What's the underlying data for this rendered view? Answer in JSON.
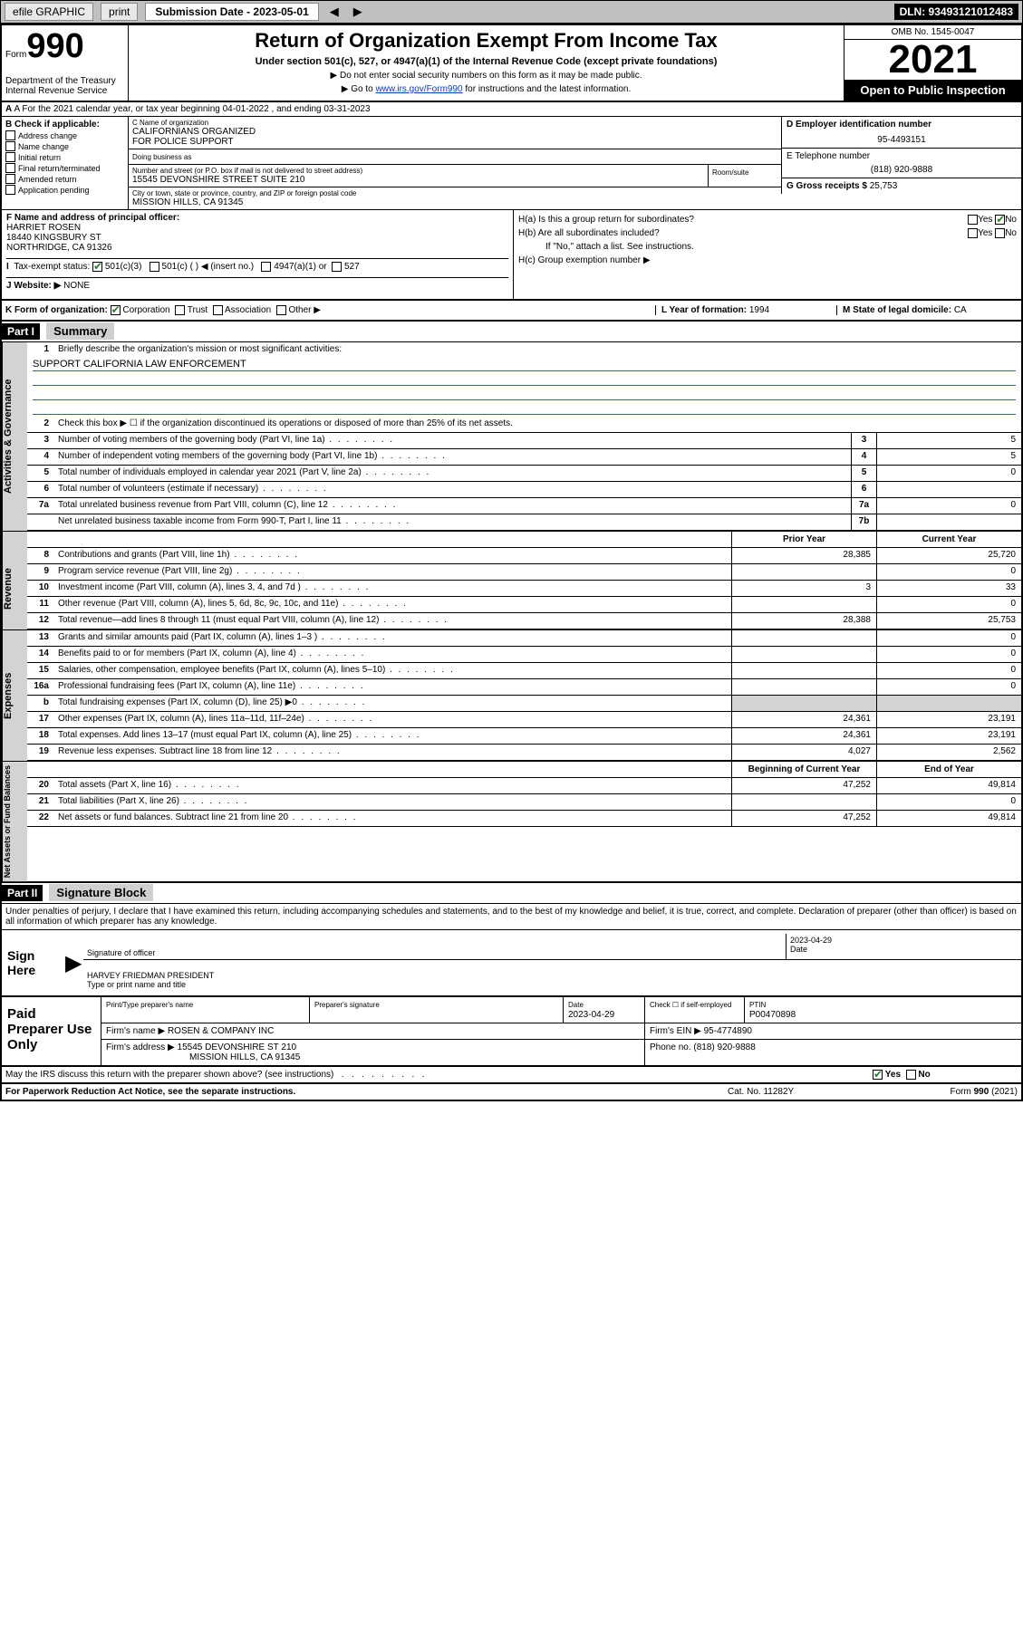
{
  "top_bar": {
    "efile_label": "efile GRAPHIC",
    "print_label": "print",
    "submission_label": "Submission Date - 2023-05-01",
    "dln_label": "DLN: 93493121012483"
  },
  "header": {
    "form_prefix": "Form",
    "form_number": "990",
    "dept": "Department of the Treasury\nInternal Revenue Service",
    "title": "Return of Organization Exempt From Income Tax",
    "subtitle": "Under section 501(c), 527, or 4947(a)(1) of the Internal Revenue Code (except private foundations)",
    "instr1": "▶ Do not enter social security numbers on this form as it may be made public.",
    "instr2_pre": "▶ Go to ",
    "instr2_link": "www.irs.gov/Form990",
    "instr2_post": " for instructions and the latest information.",
    "omb": "OMB No. 1545-0047",
    "year": "2021",
    "open": "Open to Public Inspection"
  },
  "section_a": "A For the 2021 calendar year, or tax year beginning 04-01-2022  , and ending 03-31-2023",
  "col_b": {
    "header": "B Check if applicable:",
    "items": [
      "Address change",
      "Name change",
      "Initial return",
      "Final return/terminated",
      "Amended return",
      "Application pending"
    ]
  },
  "entity": {
    "c_label": "C Name of organization",
    "name": "CALIFORNIANS ORGANIZED\nFOR POLICE SUPPORT",
    "dba_label": "Doing business as",
    "addr_label": "Number and street (or P.O. box if mail is not delivered to street address)",
    "room_label": "Room/suite",
    "addr": "15545 DEVONSHIRE STREET SUITE 210",
    "city_label": "City or town, state or province, country, and ZIP or foreign postal code",
    "city": "MISSION HILLS, CA  91345"
  },
  "right_col": {
    "d_label": "D Employer identification number",
    "ein": "95-4493151",
    "e_label": "E Telephone number",
    "phone": "(818) 920-9888",
    "g_label": "G Gross receipts $",
    "g_val": "25,753"
  },
  "f": {
    "label": "F  Name and address of principal officer:",
    "name": "HARRIET ROSEN",
    "addr1": "18440 KINGSBURY ST",
    "addr2": "NORTHRIDGE, CA  91326"
  },
  "h": {
    "a_label": "H(a)  Is this a group return for subordinates?",
    "b_label": "H(b)  Are all subordinates included?",
    "b_note": "If \"No,\" attach a list. See instructions.",
    "c_label": "H(c)  Group exemption number ▶",
    "yes": "Yes",
    "no": "No"
  },
  "i": {
    "label": "Tax-exempt status:",
    "opt1": "501(c)(3)",
    "opt2": "501(c) (  ) ◀ (insert no.)",
    "opt3": "4947(a)(1) or",
    "opt4": "527"
  },
  "j": {
    "label": "J   Website: ▶",
    "val": "NONE"
  },
  "k": {
    "label": "K Form of organization:",
    "opts": [
      "Corporation",
      "Trust",
      "Association",
      "Other ▶"
    ]
  },
  "l": {
    "label": "L Year of formation:",
    "val": "1994"
  },
  "m": {
    "label": "M State of legal domicile:",
    "val": "CA"
  },
  "parts": {
    "p1": "Part I",
    "p1_title": "Summary",
    "p2": "Part II",
    "p2_title": "Signature Block"
  },
  "summary": {
    "q1_label": "Briefly describe the organization's mission or most significant activities:",
    "q1_val": "SUPPORT CALIFORNIA LAW ENFORCEMENT",
    "q2": "Check this box ▶ ☐  if the organization discontinued its operations or disposed of more than 25% of its net assets.",
    "lines_gov": [
      {
        "n": "3",
        "t": "Number of voting members of the governing body (Part VI, line 1a)",
        "box": "3",
        "v": "5"
      },
      {
        "n": "4",
        "t": "Number of independent voting members of the governing body (Part VI, line 1b)",
        "box": "4",
        "v": "5"
      },
      {
        "n": "5",
        "t": "Total number of individuals employed in calendar year 2021 (Part V, line 2a)",
        "box": "5",
        "v": "0"
      },
      {
        "n": "6",
        "t": "Total number of volunteers (estimate if necessary)",
        "box": "6",
        "v": ""
      },
      {
        "n": "7a",
        "t": "Total unrelated business revenue from Part VIII, column (C), line 12",
        "box": "7a",
        "v": "0"
      },
      {
        "n": "",
        "t": "Net unrelated business taxable income from Form 990-T, Part I, line 11",
        "box": "7b",
        "v": ""
      }
    ],
    "col_headers": {
      "prior": "Prior Year",
      "current": "Current Year"
    },
    "revenue": [
      {
        "n": "8",
        "t": "Contributions and grants (Part VIII, line 1h)",
        "p": "28,385",
        "c": "25,720"
      },
      {
        "n": "9",
        "t": "Program service revenue (Part VIII, line 2g)",
        "p": "",
        "c": "0"
      },
      {
        "n": "10",
        "t": "Investment income (Part VIII, column (A), lines 3, 4, and 7d )",
        "p": "3",
        "c": "33"
      },
      {
        "n": "11",
        "t": "Other revenue (Part VIII, column (A), lines 5, 6d, 8c, 9c, 10c, and 11e)",
        "p": "",
        "c": "0"
      },
      {
        "n": "12",
        "t": "Total revenue—add lines 8 through 11 (must equal Part VIII, column (A), line 12)",
        "p": "28,388",
        "c": "25,753"
      }
    ],
    "expenses": [
      {
        "n": "13",
        "t": "Grants and similar amounts paid (Part IX, column (A), lines 1–3 )",
        "p": "",
        "c": "0"
      },
      {
        "n": "14",
        "t": "Benefits paid to or for members (Part IX, column (A), line 4)",
        "p": "",
        "c": "0"
      },
      {
        "n": "15",
        "t": "Salaries, other compensation, employee benefits (Part IX, column (A), lines 5–10)",
        "p": "",
        "c": "0"
      },
      {
        "n": "16a",
        "t": "Professional fundraising fees (Part IX, column (A), line 11e)",
        "p": "",
        "c": "0"
      },
      {
        "n": "b",
        "t": "Total fundraising expenses (Part IX, column (D), line 25) ▶0",
        "p": "shade",
        "c": "shade"
      },
      {
        "n": "17",
        "t": "Other expenses (Part IX, column (A), lines 11a–11d, 11f–24e)",
        "p": "24,361",
        "c": "23,191"
      },
      {
        "n": "18",
        "t": "Total expenses. Add lines 13–17 (must equal Part IX, column (A), line 25)",
        "p": "24,361",
        "c": "23,191"
      },
      {
        "n": "19",
        "t": "Revenue less expenses. Subtract line 18 from line 12",
        "p": "4,027",
        "c": "2,562"
      }
    ],
    "net_headers": {
      "beg": "Beginning of Current Year",
      "end": "End of Year"
    },
    "net": [
      {
        "n": "20",
        "t": "Total assets (Part X, line 16)",
        "p": "47,252",
        "c": "49,814"
      },
      {
        "n": "21",
        "t": "Total liabilities (Part X, line 26)",
        "p": "",
        "c": "0"
      },
      {
        "n": "22",
        "t": "Net assets or fund balances. Subtract line 21 from line 20",
        "p": "47,252",
        "c": "49,814"
      }
    ],
    "tabs": {
      "gov": "Activities & Governance",
      "rev": "Revenue",
      "exp": "Expenses",
      "net": "Net Assets or\nFund Balances"
    }
  },
  "penalty": "Under penalties of perjury, I declare that I have examined this return, including accompanying schedules and statements, and to the best of my knowledge and belief, it is true, correct, and complete. Declaration of preparer (other than officer) is based on all information of which preparer has any knowledge.",
  "sign": {
    "label": "Sign Here",
    "sig_label": "Signature of officer",
    "date_label": "Date",
    "date": "2023-04-29",
    "name": "HARVEY FRIEDMAN PRESIDENT",
    "name_label": "Type or print name and title"
  },
  "paid": {
    "label": "Paid Preparer Use Only",
    "h1": "Print/Type preparer's name",
    "h2": "Preparer's signature",
    "h3": "Date",
    "date": "2023-04-29",
    "h4_pre": "Check ☐ if self-employed",
    "h5": "PTIN",
    "ptin": "P00470898",
    "firm_name_l": "Firm's name    ▶",
    "firm_name": "ROSEN & COMPANY INC",
    "firm_ein_l": "Firm's EIN ▶",
    "firm_ein": "95-4774890",
    "firm_addr_l": "Firm's address ▶",
    "firm_addr1": "15545 DEVONSHIRE ST 210",
    "firm_addr2": "MISSION HILLS, CA  91345",
    "phone_l": "Phone no.",
    "phone": "(818) 920-9888"
  },
  "discuss": {
    "text": "May the IRS discuss this return with the preparer shown above? (see instructions)",
    "yes": "Yes",
    "no": "No"
  },
  "footer": {
    "left": "For Paperwork Reduction Act Notice, see the separate instructions.",
    "mid": "Cat. No. 11282Y",
    "right_pre": "Form ",
    "right_form": "990",
    "right_post": " (2021)"
  }
}
